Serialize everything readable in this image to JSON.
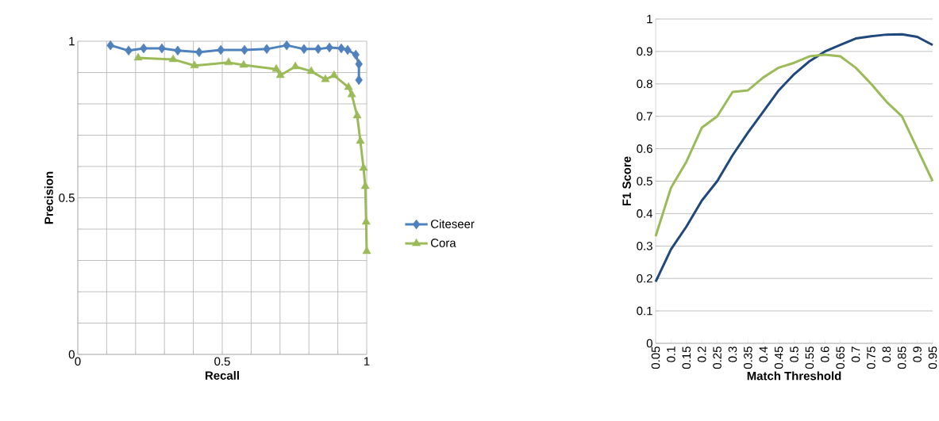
{
  "chart_data": [
    {
      "type": "line",
      "xlabel": "Recall",
      "ylabel": "Precision",
      "xlim": [
        0,
        1
      ],
      "ylim": [
        0,
        1
      ],
      "xticks": [
        0,
        {
          "value": 0.1,
          "label": null
        },
        {
          "value": 0.2,
          "label": null
        },
        {
          "value": 0.3,
          "label": null
        },
        {
          "value": 0.4,
          "label": null
        },
        0.5,
        {
          "value": 0.6,
          "label": null
        },
        {
          "value": 0.7,
          "label": null
        },
        {
          "value": 0.8,
          "label": null
        },
        {
          "value": 0.9,
          "label": null
        },
        1
      ],
      "yticks": [
        0,
        {
          "value": 0.1,
          "label": null
        },
        {
          "value": 0.2,
          "label": null
        },
        {
          "value": 0.3,
          "label": null
        },
        {
          "value": 0.4,
          "label": null
        },
        0.5,
        {
          "value": 0.6,
          "label": null
        },
        {
          "value": 0.7,
          "label": null
        },
        {
          "value": 0.8,
          "label": null
        },
        {
          "value": 0.9,
          "label": null
        },
        1
      ],
      "grid": true,
      "legend": "right",
      "line_style": "solid",
      "series": [
        {
          "name": "Citeseer",
          "color": "#4f81bd",
          "marker": "diamond",
          "x": [
            0.113,
            0.176,
            0.228,
            0.291,
            0.346,
            0.42,
            0.495,
            0.577,
            0.654,
            0.723,
            0.783,
            0.832,
            0.871,
            0.912,
            0.934,
            0.962,
            0.973,
            0.973
          ],
          "values": [
            0.987,
            0.97,
            0.977,
            0.977,
            0.97,
            0.965,
            0.972,
            0.972,
            0.975,
            0.987,
            0.975,
            0.975,
            0.98,
            0.977,
            0.972,
            0.957,
            0.927,
            0.876
          ]
        },
        {
          "name": "Cora",
          "color": "#9bbb59",
          "marker": "triangle",
          "x": [
            0.209,
            0.33,
            0.404,
            0.522,
            0.574,
            0.687,
            0.701,
            0.753,
            0.808,
            0.857,
            0.887,
            0.937,
            0.948,
            0.967,
            0.978,
            0.989,
            0.995,
            0.998,
            1.0
          ],
          "values": [
            0.947,
            0.942,
            0.922,
            0.932,
            0.924,
            0.911,
            0.891,
            0.919,
            0.904,
            0.878,
            0.891,
            0.853,
            0.83,
            0.762,
            0.681,
            0.595,
            0.537,
            0.423,
            0.329
          ]
        }
      ]
    },
    {
      "type": "line",
      "xlabel": "Match Threshold",
      "ylabel": "F1 Score",
      "ylim": [
        0,
        1
      ],
      "categories": [
        "0.05",
        "0.1",
        "0.15",
        "0.2",
        "0.25",
        "0.3",
        "0.35",
        "0.4",
        "0.45",
        "0.5",
        "0.55",
        "0.6",
        "0.65",
        "0.7",
        "0.75",
        "0.8",
        "0.85",
        "0.9",
        "0.95"
      ],
      "yticks": [
        0,
        0.1,
        0.2,
        0.3,
        0.4,
        0.5,
        0.6,
        0.7,
        0.8,
        0.9,
        1
      ],
      "grid": "y",
      "marker": "none",
      "line_style": "solid",
      "series": [
        {
          "color": "#1f497d",
          "values": [
            0.19,
            0.29,
            0.36,
            0.44,
            0.5,
            0.58,
            0.65,
            0.715,
            0.78,
            0.83,
            0.87,
            0.9,
            0.92,
            0.94,
            0.947,
            0.952,
            0.953,
            0.945,
            0.92
          ]
        },
        {
          "color": "#9bbb59",
          "values": [
            0.33,
            0.48,
            0.56,
            0.665,
            0.7,
            0.775,
            0.78,
            0.82,
            0.85,
            0.865,
            0.885,
            0.89,
            0.885,
            0.85,
            0.8,
            0.745,
            0.7,
            0.6,
            0.5
          ]
        }
      ]
    }
  ]
}
